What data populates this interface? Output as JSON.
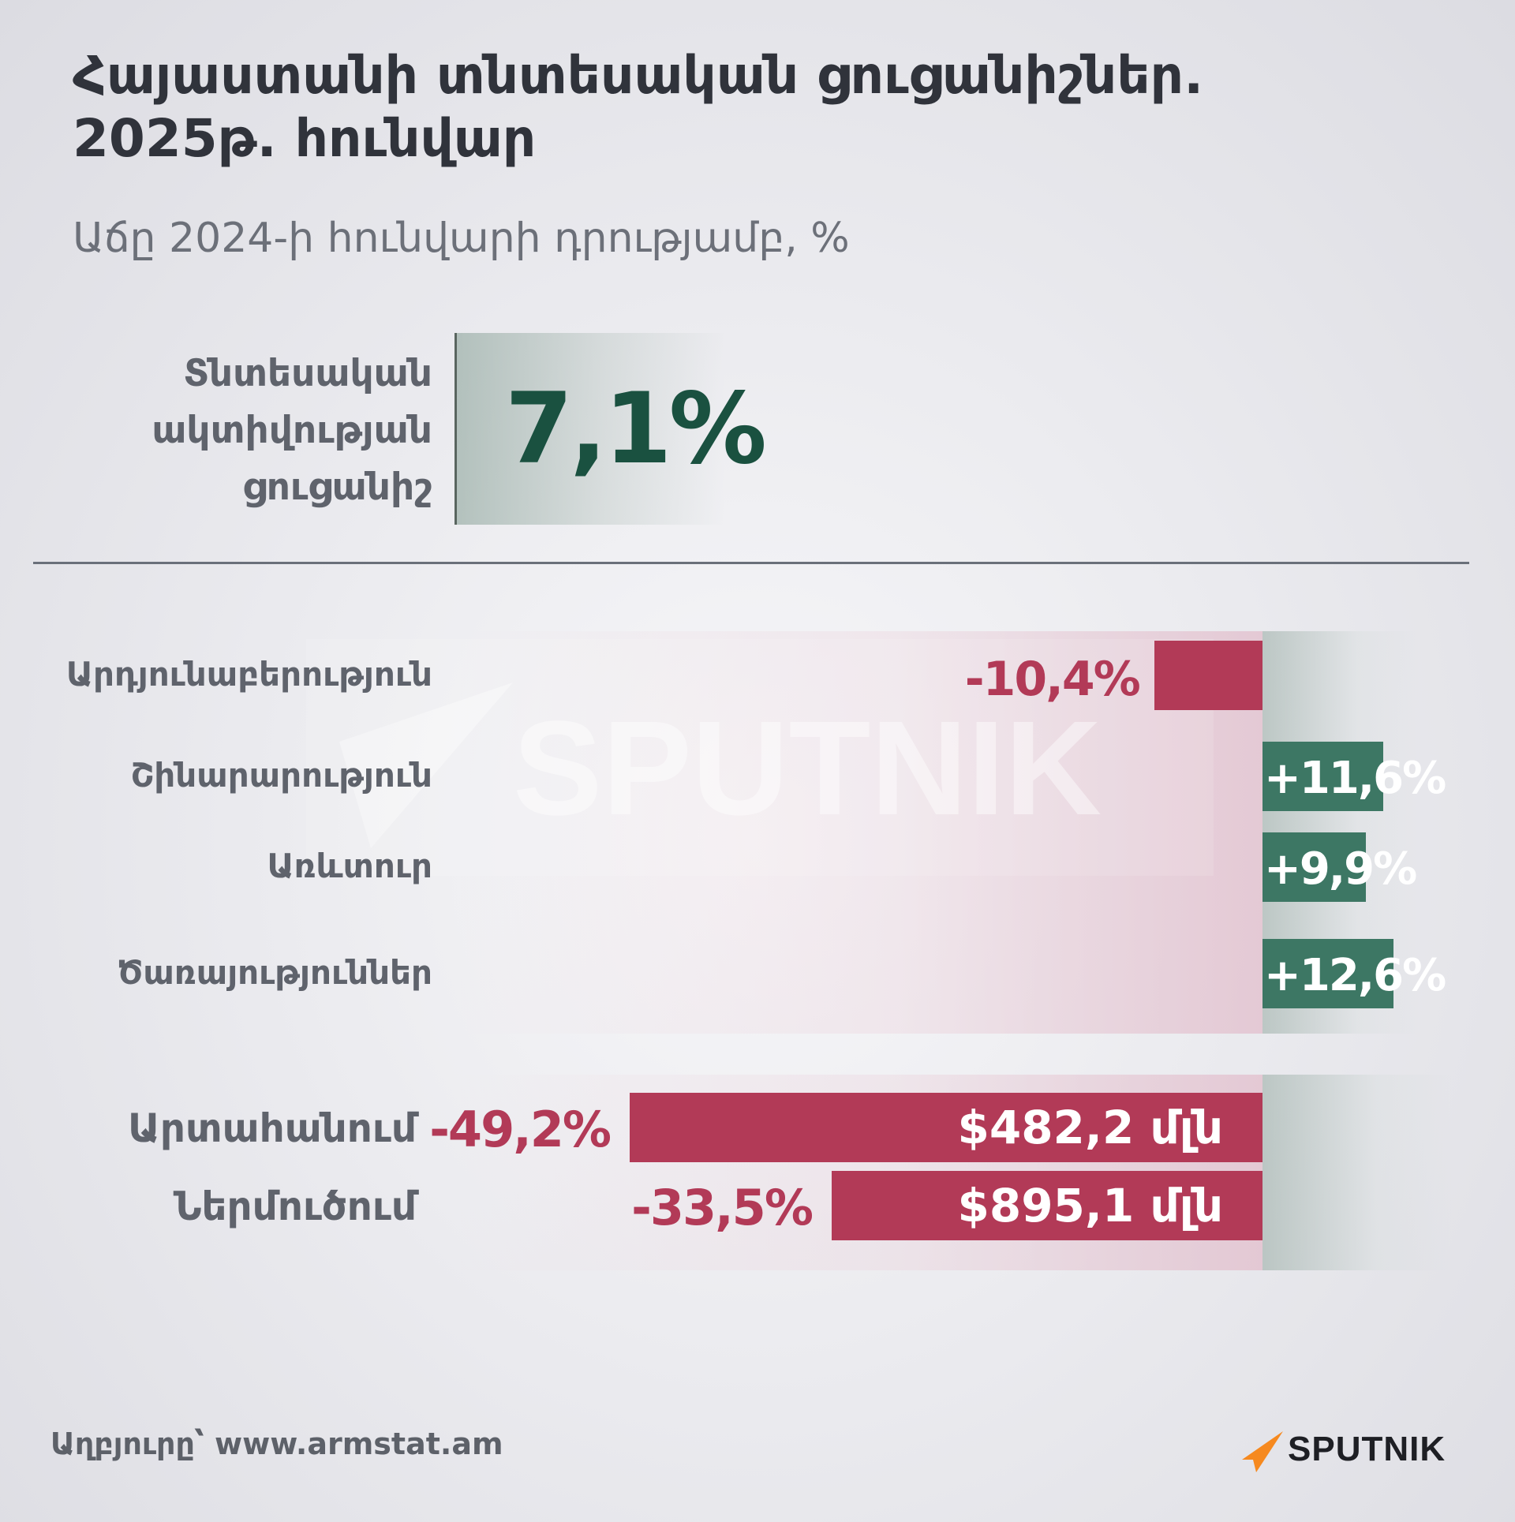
{
  "header": {
    "title_line1": "Հայաստանի տնտեսական ցուցանիշներ.",
    "title_line2": "2025թ. հունվար",
    "subtitle": "Աճը 2024-ի հունվարի դրությամբ, %"
  },
  "kpi": {
    "label_line1": "Տնտեսական",
    "label_line2": "ակտիվության",
    "label_line3": "ցուցանիշ",
    "value": "7,1%"
  },
  "watermark": {
    "text": "SPUTNIK"
  },
  "footer": {
    "source": "Աղբյուրը՝ www.armstat.am",
    "brand": "SPUTNIK"
  },
  "colors": {
    "negative": "#b23a57",
    "positive": "#3d7764",
    "kpi_value": "#1a5140"
  },
  "chart_data": [
    {
      "type": "bar",
      "orientation": "horizontal",
      "categories": [
        "Արդյունաբերություն",
        "Շինարարություն",
        "Առևտուր",
        "Ծառայություններ"
      ],
      "values": [
        -10.4,
        11.6,
        9.9,
        12.6
      ],
      "labels": [
        "-10,4%",
        "+11,6%",
        "+9,9%",
        "+12,6%"
      ]
    },
    {
      "type": "bar",
      "orientation": "horizontal",
      "categories": [
        "Արտահանում",
        "Ներմուծում"
      ],
      "values": [
        -49.2,
        -33.5
      ],
      "labels": [
        "-49,2%",
        "-33,5%"
      ],
      "amounts": [
        "$482,2 մլն",
        "$895,1 մլն"
      ]
    }
  ]
}
